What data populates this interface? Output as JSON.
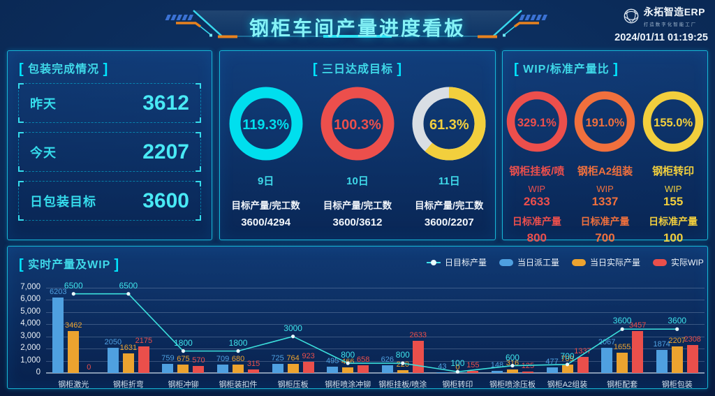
{
  "ui": {
    "bracket_left": "[",
    "bracket_right": "]"
  },
  "header": {
    "title": "钢柜车间产量进度看板",
    "logo_text": "永拓智造ERP",
    "logo_subtitle": "打造数字化智能工厂",
    "timestamp": "2024/01/11 01:19:25"
  },
  "packaging": {
    "title": "包装完成情况",
    "rows": [
      {
        "label": "昨天",
        "value": "3612"
      },
      {
        "label": "今天",
        "value": "2207"
      },
      {
        "label": "日包装目标",
        "value": "3600"
      }
    ]
  },
  "three_day": {
    "title": "三日达成目标",
    "donuts": [
      {
        "percent": "119.3%",
        "pct": 119.3,
        "color": "#00dfee",
        "day": "9日",
        "metric": "目标产量/完工数",
        "value": "3600/4294"
      },
      {
        "percent": "100.3%",
        "pct": 100.3,
        "color": "#ec4f4c",
        "day": "10日",
        "metric": "目标产量/完工数",
        "value": "3600/3612"
      },
      {
        "percent": "61.3%",
        "pct": 61.3,
        "color": "#f2cf3d",
        "rest": "#d9dee4",
        "day": "11日",
        "metric": "目标产量/完工数",
        "value": "3600/2207"
      }
    ]
  },
  "wip": {
    "title": "WIP/标准产量比",
    "donuts": [
      {
        "percent": "329.1%",
        "pct": 329.1,
        "color": "#ec4f4c",
        "name": "钢柜挂板/喷",
        "wip_label": "WIP",
        "wip": "2633",
        "std_label": "日标准产量",
        "std": "800"
      },
      {
        "percent": "191.0%",
        "pct": 191.0,
        "color": "#f0703d",
        "name": "钢柜A2组装",
        "wip_label": "WIP",
        "wip": "1337",
        "std_label": "日标准产量",
        "std": "700"
      },
      {
        "percent": "155.0%",
        "pct": 155.0,
        "color": "#f2cf3d",
        "name": "钢柜转印",
        "wip_label": "WIP",
        "wip": "155",
        "std_label": "日标准产量",
        "std": "100"
      }
    ]
  },
  "realtime": {
    "title": "实时产量及WIP"
  },
  "chart_data": {
    "type": "bar",
    "categories": [
      "钢柜激光",
      "钢柜折弯",
      "钢柜冲铆",
      "钢柜装扣件",
      "钢柜压板",
      "钢柜喷涂冲铆",
      "钢柜挂板/喷涂",
      "钢柜转印",
      "钢柜喷涂压板",
      "钢柜A2组装",
      "钢柜配套",
      "钢柜包装"
    ],
    "series": [
      {
        "name": "日目标产量",
        "type": "line",
        "color": "#3ce0dc",
        "values": [
          6500,
          6500,
          1800,
          1800,
          3000,
          800,
          800,
          100,
          600,
          700,
          3600,
          3600
        ]
      },
      {
        "name": "当日派工量",
        "type": "bar",
        "color": "#4fa0e0",
        "values": [
          6203,
          2050,
          759,
          709,
          725,
          495,
          626,
          43,
          148,
          477,
          2067,
          1874
        ]
      },
      {
        "name": "当日实际产量",
        "type": "bar",
        "color": "#eca32f",
        "values": [
          3462,
          1631,
          675,
          680,
          764,
          466,
          220,
          0,
          316,
          709,
          1655,
          2207
        ]
      },
      {
        "name": "实际WIP",
        "type": "bar",
        "color": "#ea4f4b",
        "values": [
          0,
          2175,
          570,
          315,
          923,
          658,
          2633,
          155,
          125,
          1337,
          3457,
          2308
        ]
      }
    ],
    "ylim": [
      0,
      7000
    ],
    "ytick_step": 1000,
    "grid": true,
    "legend_position": "top"
  }
}
